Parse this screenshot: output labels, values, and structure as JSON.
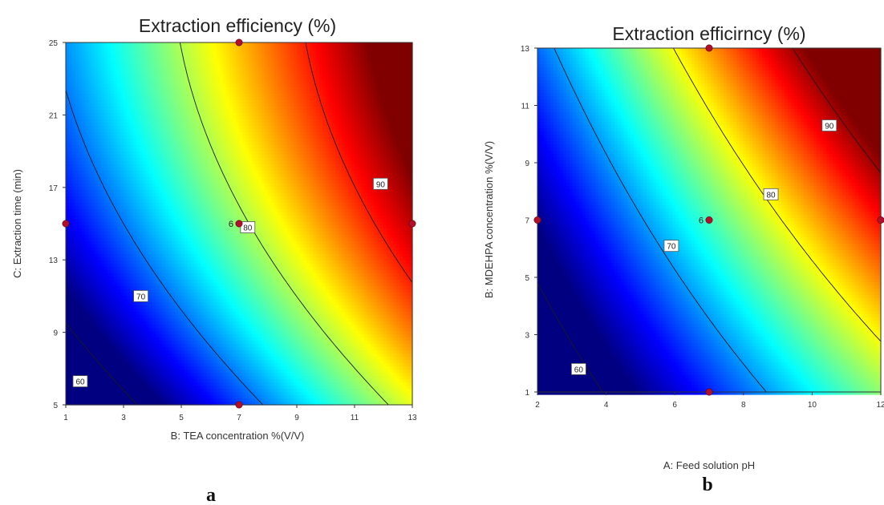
{
  "chart_data": [
    {
      "type": "contour",
      "panel_label": "a",
      "title": "Extraction efficiency (%)",
      "xlabel": "B: TEA concentration %(V/V)",
      "ylabel": "C: Extraction time (min)",
      "xlim": [
        1,
        13
      ],
      "ylim": [
        5,
        25
      ],
      "xticks": [
        "1",
        "3",
        "5",
        "7",
        "9",
        "11",
        "13"
      ],
      "yticks": [
        "5",
        "9",
        "13",
        "17",
        "21",
        "25"
      ],
      "colormap": "jet",
      "color_range": [
        62,
        95
      ],
      "contour_levels": [
        60,
        70,
        80,
        90
      ],
      "contour_label_positions": [
        {
          "level": "60",
          "x": 1.5,
          "y": 6.3
        },
        {
          "level": "70",
          "x": 3.6,
          "y": 11.0
        },
        {
          "level": "80",
          "x": 7.3,
          "y": 14.8
        },
        {
          "level": "90",
          "x": 11.9,
          "y": 17.2
        }
      ],
      "design_points": [
        {
          "x": 1,
          "y": 15
        },
        {
          "x": 7,
          "y": 25
        },
        {
          "x": 7,
          "y": 15
        },
        {
          "x": 7,
          "y": 5
        },
        {
          "x": 13,
          "y": 15
        }
      ],
      "center_replicates": {
        "label": "6",
        "x": 7,
        "y": 15
      }
    },
    {
      "type": "contour",
      "panel_label": "b",
      "title": "Extraction efficirncy (%)",
      "xlabel": "A: Feed solution pH",
      "ylabel": "B: MDEHPA concentration %(V/V)",
      "xlim": [
        2,
        12
      ],
      "ylim": [
        1,
        13
      ],
      "xticks": [
        "2",
        "4",
        "6",
        "8",
        "10",
        "12"
      ],
      "yticks": [
        "1",
        "3",
        "5",
        "7",
        "9",
        "11",
        "13"
      ],
      "colormap": "jet",
      "color_range": [
        62,
        91
      ],
      "contour_levels": [
        60,
        70,
        80,
        90
      ],
      "contour_label_positions": [
        {
          "level": "60",
          "x": 3.2,
          "y": 1.8
        },
        {
          "level": "70",
          "x": 5.9,
          "y": 6.1
        },
        {
          "level": "80",
          "x": 8.8,
          "y": 7.9
        },
        {
          "level": "90",
          "x": 10.5,
          "y": 10.3
        }
      ],
      "design_points": [
        {
          "x": 2,
          "y": 7
        },
        {
          "x": 7,
          "y": 13
        },
        {
          "x": 7,
          "y": 7
        },
        {
          "x": 7,
          "y": 1
        },
        {
          "x": 12,
          "y": 7
        }
      ],
      "center_replicates": {
        "label": "6",
        "x": 7,
        "y": 7
      }
    }
  ]
}
